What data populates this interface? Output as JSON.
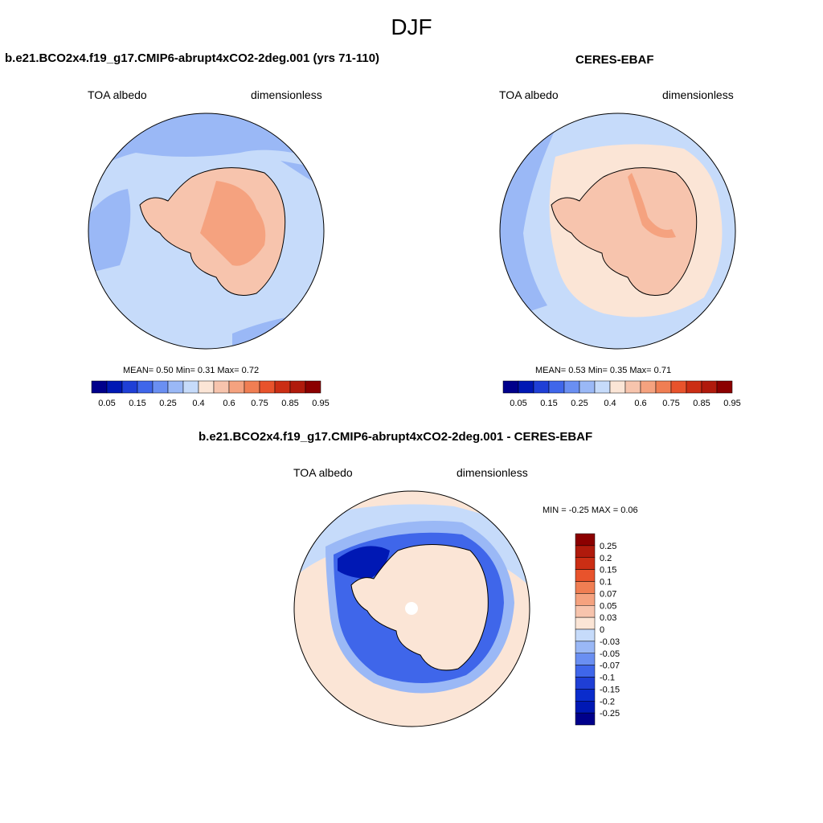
{
  "page_title": "DJF",
  "panels": [
    {
      "title": "b.e21.BCO2x4.f19_g17.CMIP6-abrupt4xCO2-2deg.001 (yrs 71-110)",
      "left_label": "TOA albedo",
      "right_label": "dimensionless",
      "stats": "MEAN=   0.50  Min=   0.31   Max=   0.72"
    },
    {
      "title": "CERES-EBAF",
      "left_label": "TOA albedo",
      "right_label": "dimensionless",
      "stats": "MEAN=   0.53  Min=   0.35   Max=   0.71"
    },
    {
      "title": "b.e21.BCO2x4.f19_g17.CMIP6-abrupt4xCO2-2deg.001 - CERES-EBAF",
      "left_label": "TOA albedo",
      "right_label": "dimensionless",
      "stats": "MIN =  -0.25 MAX =   0.06"
    }
  ],
  "colorbar_abs": {
    "colors": [
      "#00008b",
      "#0018b4",
      "#1f3fd6",
      "#3f66ea",
      "#6a8ff2",
      "#9ab8f6",
      "#c6dbfa",
      "#fbe5d6",
      "#f7c4ad",
      "#f5a27f",
      "#f07e53",
      "#e8532c",
      "#cb2e14",
      "#b01a0c",
      "#8b0000"
    ],
    "labels": [
      "0.05",
      "0.15",
      "0.25",
      "0.4",
      "0.6",
      "0.75",
      "0.85",
      "0.95"
    ]
  },
  "colorbar_diff": {
    "colors": [
      "#00008b",
      "#0018b4",
      "#0a2ccc",
      "#1f3fd6",
      "#3f66ea",
      "#6a8ff2",
      "#9ab8f6",
      "#c6dbfa",
      "#fbe5d6",
      "#f7c4ad",
      "#f5a27f",
      "#f07e53",
      "#e8532c",
      "#cb2e14",
      "#b01a0c",
      "#8b0000"
    ],
    "labels": [
      "0.25",
      "0.2",
      "0.15",
      "0.1",
      "0.07",
      "0.05",
      "0.03",
      "0",
      "-0.03",
      "-0.05",
      "-0.07",
      "-0.1",
      "-0.15",
      "-0.2",
      "-0.25"
    ]
  }
}
